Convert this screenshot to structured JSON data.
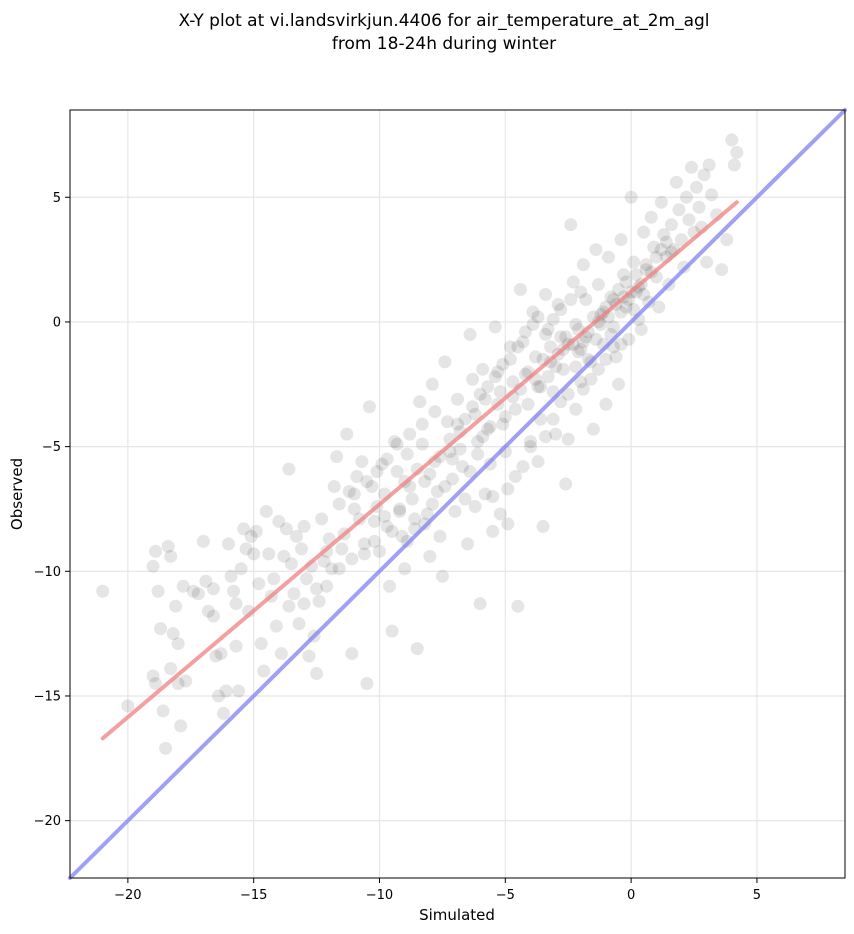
{
  "chart_data": {
    "type": "scatter",
    "title": "X-Y plot at vi.landsvirkjun.4406 for air_temperature_at_2m_agl",
    "subtitle": "from 18-24h during winter",
    "xlabel": "Simulated",
    "ylabel": "Observed",
    "xlim": [
      -22.3,
      8.5
    ],
    "ylim": [
      -22.3,
      8.5
    ],
    "x_ticks": [
      -20,
      -15,
      -10,
      -5,
      0,
      5
    ],
    "y_ticks": [
      -20,
      -15,
      -10,
      -5,
      0,
      5
    ],
    "x_tick_labels": [
      "−20",
      "−15",
      "−10",
      "−5",
      "0",
      "5"
    ],
    "y_tick_labels": [
      "−20",
      "−15",
      "−10",
      "−5",
      "0",
      "5"
    ],
    "grid": true,
    "point_color": "#000000",
    "point_opacity": 0.1,
    "lines": [
      {
        "kind": "regression-fit",
        "color": "#f08080",
        "x": [
          -21.0,
          4.2
        ],
        "y": [
          -16.7,
          4.8
        ]
      },
      {
        "kind": "one-to-one",
        "color": "#8080f0",
        "x": [
          -22.3,
          8.5
        ],
        "y": [
          -22.3,
          8.5
        ]
      }
    ],
    "points": [
      [
        -21.0,
        -10.8
      ],
      [
        -20.0,
        -15.4
      ],
      [
        -19.0,
        -9.8
      ],
      [
        -19.0,
        -14.2
      ],
      [
        -18.9,
        -14.5
      ],
      [
        -18.9,
        -9.2
      ],
      [
        -18.8,
        -10.8
      ],
      [
        -18.7,
        -12.3
      ],
      [
        -18.6,
        -15.6
      ],
      [
        -18.5,
        -17.1
      ],
      [
        -18.4,
        -9.0
      ],
      [
        -18.3,
        -9.4
      ],
      [
        -18.3,
        -13.9
      ],
      [
        -18.2,
        -12.5
      ],
      [
        -18.1,
        -11.4
      ],
      [
        -18.0,
        -12.9
      ],
      [
        -18.0,
        -14.5
      ],
      [
        -17.9,
        -16.2
      ],
      [
        -17.8,
        -10.6
      ],
      [
        -17.7,
        -14.4
      ],
      [
        -17.4,
        -10.8
      ],
      [
        -17.2,
        -10.9
      ],
      [
        -17.0,
        -8.8
      ],
      [
        -16.9,
        -10.4
      ],
      [
        -16.8,
        -11.6
      ],
      [
        -16.6,
        -11.8
      ],
      [
        -16.6,
        -10.7
      ],
      [
        -16.5,
        -13.4
      ],
      [
        -16.4,
        -15.0
      ],
      [
        -16.3,
        -13.3
      ],
      [
        -16.2,
        -15.7
      ],
      [
        -16.1,
        -14.8
      ],
      [
        -16.0,
        -8.9
      ],
      [
        -15.9,
        -10.2
      ],
      [
        -15.8,
        -10.8
      ],
      [
        -15.7,
        -11.3
      ],
      [
        -15.7,
        -13.0
      ],
      [
        -15.6,
        -14.8
      ],
      [
        -15.5,
        -9.9
      ],
      [
        -15.4,
        -8.3
      ],
      [
        -15.3,
        -9.1
      ],
      [
        -15.2,
        -11.6
      ],
      [
        -15.1,
        -8.6
      ],
      [
        -15.0,
        -9.3
      ],
      [
        -14.9,
        -8.4
      ],
      [
        -14.8,
        -10.5
      ],
      [
        -14.7,
        -12.9
      ],
      [
        -14.6,
        -14.0
      ],
      [
        -14.5,
        -7.6
      ],
      [
        -14.4,
        -9.3
      ],
      [
        -14.3,
        -11.0
      ],
      [
        -14.2,
        -10.3
      ],
      [
        -14.1,
        -12.2
      ],
      [
        -14.0,
        -8.0
      ],
      [
        -13.9,
        -13.3
      ],
      [
        -13.8,
        -9.4
      ],
      [
        -13.7,
        -8.3
      ],
      [
        -13.6,
        -11.4
      ],
      [
        -13.6,
        -5.9
      ],
      [
        -13.5,
        -9.7
      ],
      [
        -13.4,
        -10.9
      ],
      [
        -13.3,
        -8.6
      ],
      [
        -13.2,
        -12.1
      ],
      [
        -13.1,
        -9.1
      ],
      [
        -13.0,
        -8.2
      ],
      [
        -12.9,
        -10.3
      ],
      [
        -12.8,
        -13.4
      ],
      [
        -12.7,
        -9.8
      ],
      [
        -12.6,
        -12.6
      ],
      [
        -12.5,
        -14.1
      ],
      [
        -12.4,
        -11.2
      ],
      [
        -12.3,
        -7.9
      ],
      [
        -12.2,
        -9.6
      ],
      [
        -12.1,
        -10.6
      ],
      [
        -12.0,
        -8.7
      ],
      [
        -11.9,
        -9.9
      ],
      [
        -11.8,
        -6.6
      ],
      [
        -11.7,
        -5.4
      ],
      [
        -11.6,
        -7.3
      ],
      [
        -11.5,
        -9.1
      ],
      [
        -11.4,
        -8.5
      ],
      [
        -11.3,
        -4.5
      ],
      [
        -11.2,
        -6.8
      ],
      [
        -11.1,
        -13.3
      ],
      [
        -11.0,
        -7.5
      ],
      [
        -10.9,
        -6.2
      ],
      [
        -10.8,
        -7.9
      ],
      [
        -10.7,
        -5.6
      ],
      [
        -10.6,
        -8.9
      ],
      [
        -10.5,
        -14.5
      ],
      [
        -10.4,
        -3.4
      ],
      [
        -10.3,
        -6.6
      ],
      [
        -10.2,
        -8.0
      ],
      [
        -10.1,
        -7.4
      ],
      [
        -10.0,
        -9.2
      ],
      [
        -9.9,
        -5.7
      ],
      [
        -9.8,
        -6.9
      ],
      [
        -9.7,
        -8.2
      ],
      [
        -9.6,
        -10.6
      ],
      [
        -9.5,
        -12.4
      ],
      [
        -9.4,
        -4.8
      ],
      [
        -9.3,
        -6.0
      ],
      [
        -9.2,
        -7.6
      ],
      [
        -9.1,
        -8.6
      ],
      [
        -9.0,
        -9.9
      ],
      [
        -8.9,
        -5.3
      ],
      [
        -8.8,
        -6.6
      ],
      [
        -8.7,
        -7.1
      ],
      [
        -8.6,
        -8.3
      ],
      [
        -8.5,
        -13.1
      ],
      [
        -8.4,
        -3.2
      ],
      [
        -8.3,
        -4.9
      ],
      [
        -8.2,
        -6.4
      ],
      [
        -8.1,
        -7.7
      ],
      [
        -8.0,
        -9.4
      ],
      [
        -7.9,
        -2.5
      ],
      [
        -7.8,
        -5.6
      ],
      [
        -7.7,
        -6.8
      ],
      [
        -7.6,
        -8.6
      ],
      [
        -7.5,
        -10.2
      ],
      [
        -7.4,
        -1.6
      ],
      [
        -7.3,
        -4.0
      ],
      [
        -7.2,
        -5.2
      ],
      [
        -7.1,
        -6.3
      ],
      [
        -7.0,
        -7.6
      ],
      [
        -6.9,
        -3.1
      ],
      [
        -6.8,
        -4.4
      ],
      [
        -6.7,
        -5.8
      ],
      [
        -6.6,
        -7.1
      ],
      [
        -6.5,
        -8.9
      ],
      [
        -6.4,
        -0.5
      ],
      [
        -6.3,
        -2.3
      ],
      [
        -6.2,
        -3.7
      ],
      [
        -6.1,
        -4.8
      ],
      [
        -6.0,
        -11.3
      ],
      [
        -5.9,
        -1.9
      ],
      [
        -5.8,
        -3.1
      ],
      [
        -5.7,
        -4.3
      ],
      [
        -5.6,
        -5.7
      ],
      [
        -5.5,
        -7.0
      ],
      [
        -5.4,
        -0.2
      ],
      [
        -5.3,
        -2.0
      ],
      [
        -5.2,
        -2.8
      ],
      [
        -5.1,
        -4.1
      ],
      [
        -5.0,
        -5.2
      ],
      [
        -4.9,
        -8.1
      ],
      [
        -4.8,
        -1.0
      ],
      [
        -4.7,
        -2.4
      ],
      [
        -4.6,
        -3.5
      ],
      [
        -4.5,
        -11.4
      ],
      [
        -4.4,
        1.3
      ],
      [
        -4.3,
        -0.8
      ],
      [
        -4.2,
        -2.1
      ],
      [
        -4.1,
        -3.3
      ],
      [
        -4.0,
        -5.0
      ],
      [
        -3.9,
        0.4
      ],
      [
        -3.8,
        -1.4
      ],
      [
        -3.7,
        -2.6
      ],
      [
        -3.6,
        -3.9
      ],
      [
        -3.5,
        -8.2
      ],
      [
        -3.4,
        1.1
      ],
      [
        -3.3,
        -0.3
      ],
      [
        -3.2,
        -1.6
      ],
      [
        -3.1,
        -2.8
      ],
      [
        -3.0,
        -4.5
      ],
      [
        -2.9,
        0.7
      ],
      [
        -2.8,
        -0.6
      ],
      [
        -2.7,
        -1.9
      ],
      [
        -2.6,
        -6.5
      ],
      [
        -2.5,
        -4.7
      ],
      [
        -2.4,
        3.9
      ],
      [
        -2.3,
        1.6
      ],
      [
        -2.2,
        -0.1
      ],
      [
        -2.1,
        -1.2
      ],
      [
        -2.0,
        -2.4
      ],
      [
        -1.9,
        2.3
      ],
      [
        -1.8,
        0.9
      ],
      [
        -1.7,
        -0.4
      ],
      [
        -1.6,
        -1.6
      ],
      [
        -1.5,
        -4.3
      ],
      [
        -1.4,
        2.9
      ],
      [
        -1.3,
        1.5
      ],
      [
        -1.2,
        0.3
      ],
      [
        -1.1,
        -0.9
      ],
      [
        -1.0,
        -3.3
      ],
      [
        -0.9,
        2.6
      ],
      [
        -0.8,
        1.0
      ],
      [
        -0.7,
        -0.2
      ],
      [
        -0.6,
        -1.4
      ],
      [
        -0.5,
        -2.5
      ],
      [
        -0.4,
        3.3
      ],
      [
        -0.3,
        1.9
      ],
      [
        -0.2,
        0.6
      ],
      [
        -0.1,
        -0.7
      ],
      [
        0.0,
        5.0
      ],
      [
        0.1,
        2.4
      ],
      [
        0.2,
        1.2
      ],
      [
        0.3,
        0.1
      ],
      [
        0.4,
        -0.3
      ],
      [
        0.5,
        3.6
      ],
      [
        0.6,
        2.1
      ],
      [
        0.7,
        0.8
      ],
      [
        0.8,
        4.2
      ],
      [
        0.9,
        3.0
      ],
      [
        1.0,
        1.8
      ],
      [
        1.1,
        0.6
      ],
      [
        1.2,
        4.8
      ],
      [
        1.3,
        3.5
      ],
      [
        1.4,
        2.6
      ],
      [
        1.5,
        1.5
      ],
      [
        1.6,
        3.9
      ],
      [
        1.7,
        2.9
      ],
      [
        1.8,
        5.6
      ],
      [
        1.9,
        4.5
      ],
      [
        2.0,
        3.3
      ],
      [
        2.1,
        2.2
      ],
      [
        2.2,
        5.0
      ],
      [
        2.3,
        4.1
      ],
      [
        2.4,
        6.2
      ],
      [
        2.5,
        3.6
      ],
      [
        2.6,
        5.4
      ],
      [
        2.7,
        4.6
      ],
      [
        2.8,
        3.8
      ],
      [
        2.9,
        5.9
      ],
      [
        3.0,
        2.4
      ],
      [
        3.1,
        6.3
      ],
      [
        3.2,
        5.1
      ],
      [
        3.4,
        4.3
      ],
      [
        3.6,
        2.1
      ],
      [
        3.8,
        3.3
      ],
      [
        4.0,
        7.3
      ],
      [
        4.1,
        6.3
      ],
      [
        4.2,
        6.8
      ],
      [
        -8.9,
        -8.8
      ],
      [
        -8.6,
        -7.9
      ],
      [
        -8.2,
        -8.1
      ],
      [
        -7.9,
        -7.3
      ],
      [
        -7.4,
        -6.6
      ],
      [
        -7.1,
        -5.5
      ],
      [
        -6.8,
        -5.1
      ],
      [
        -6.4,
        -6.0
      ],
      [
        -6.1,
        -5.3
      ],
      [
        -5.9,
        -4.6
      ],
      [
        -5.6,
        -4.2
      ],
      [
        -5.3,
        -3.3
      ],
      [
        -5.0,
        -3.8
      ],
      [
        -4.7,
        -3.0
      ],
      [
        -4.4,
        -2.7
      ],
      [
        -4.1,
        -2.0
      ],
      [
        -3.8,
        -2.3
      ],
      [
        -3.5,
        -1.5
      ],
      [
        -3.2,
        -1.0
      ],
      [
        -2.9,
        -1.3
      ],
      [
        -2.6,
        -0.6
      ],
      [
        -2.3,
        -0.9
      ],
      [
        -2.1,
        -0.3
      ],
      [
        -1.8,
        -0.6
      ],
      [
        -1.5,
        0.2
      ],
      [
        -1.2,
        -0.1
      ],
      [
        -1.0,
        0.6
      ],
      [
        -0.7,
        0.9
      ],
      [
        -0.5,
        1.3
      ],
      [
        -0.3,
        1.0
      ],
      [
        -0.2,
        1.6
      ],
      [
        0.0,
        1.2
      ],
      [
        0.2,
        1.9
      ],
      [
        0.4,
        1.5
      ],
      [
        0.6,
        2.3
      ],
      [
        0.8,
        2.0
      ],
      [
        1.0,
        2.6
      ],
      [
        1.2,
        2.9
      ],
      [
        1.4,
        3.2
      ],
      [
        1.6,
        2.8
      ],
      [
        -2.2,
        -1.8
      ],
      [
        -2.0,
        -1.1
      ],
      [
        -1.9,
        -0.8
      ],
      [
        -1.7,
        -1.5
      ],
      [
        -1.4,
        -0.7
      ],
      [
        -1.3,
        0.0
      ],
      [
        -1.1,
        0.4
      ],
      [
        -0.9,
        0.2
      ],
      [
        -0.8,
        -0.5
      ],
      [
        -0.6,
        0.7
      ],
      [
        -0.4,
        0.4
      ],
      [
        -0.1,
        0.9
      ],
      [
        0.1,
        0.5
      ],
      [
        0.3,
        1.4
      ],
      [
        0.5,
        1.1
      ],
      [
        -2.5,
        -0.9
      ],
      [
        -2.7,
        -1.1
      ],
      [
        -3.0,
        -1.8
      ],
      [
        -3.3,
        -2.2
      ],
      [
        -3.6,
        -2.6
      ],
      [
        -9.5,
        -8.4
      ],
      [
        -9.2,
        -7.5
      ],
      [
        -10.2,
        -8.8
      ],
      [
        -10.6,
        -9.3
      ],
      [
        -11.1,
        -9.5
      ],
      [
        -11.6,
        -9.9
      ],
      [
        -12.1,
        -9.2
      ],
      [
        -9.8,
        -7.8
      ],
      [
        -9.0,
        -6.4
      ],
      [
        -8.5,
        -5.9
      ],
      [
        -8.0,
        -6.1
      ],
      [
        -7.6,
        -5.4
      ],
      [
        -7.2,
        -4.7
      ],
      [
        -6.9,
        -4.1
      ],
      [
        -6.6,
        -3.9
      ],
      [
        -6.3,
        -3.4
      ],
      [
        -6.0,
        -2.9
      ],
      [
        -5.7,
        -2.6
      ],
      [
        -5.4,
        -2.2
      ],
      [
        -5.1,
        -1.7
      ],
      [
        -4.8,
        -1.5
      ],
      [
        -4.5,
        -1.0
      ],
      [
        -4.2,
        -0.4
      ],
      [
        -3.9,
        -0.1
      ],
      [
        -3.7,
        0.2
      ],
      [
        -3.4,
        -0.5
      ],
      [
        -3.1,
        0.1
      ],
      [
        -2.8,
        0.5
      ],
      [
        -2.4,
        0.9
      ],
      [
        -2.0,
        1.2
      ],
      [
        -7.8,
        -3.6
      ],
      [
        -8.3,
        -4.1
      ],
      [
        -8.8,
        -4.5
      ],
      [
        -9.3,
        -4.9
      ],
      [
        -9.7,
        -5.5
      ],
      [
        -10.1,
        -6.0
      ],
      [
        -10.5,
        -6.4
      ],
      [
        -11.0,
        -6.9
      ],
      [
        -12.5,
        -10.7
      ],
      [
        -13.0,
        -11.3
      ],
      [
        -6.2,
        -7.4
      ],
      [
        -5.8,
        -6.9
      ],
      [
        -5.5,
        -8.4
      ],
      [
        -5.2,
        -7.7
      ],
      [
        -4.9,
        -6.7
      ],
      [
        -4.6,
        -6.2
      ],
      [
        -4.3,
        -5.8
      ],
      [
        -4.0,
        -4.8
      ],
      [
        -3.7,
        -5.6
      ],
      [
        -3.4,
        -4.6
      ],
      [
        -3.1,
        -3.9
      ],
      [
        -2.8,
        -3.2
      ],
      [
        -2.5,
        -2.9
      ],
      [
        -2.2,
        -3.5
      ],
      [
        -1.9,
        -2.7
      ],
      [
        -1.6,
        -2.3
      ],
      [
        -1.3,
        -1.9
      ],
      [
        -1.0,
        -1.5
      ],
      [
        -0.7,
        -1.0
      ],
      [
        -0.4,
        -0.9
      ]
    ]
  }
}
